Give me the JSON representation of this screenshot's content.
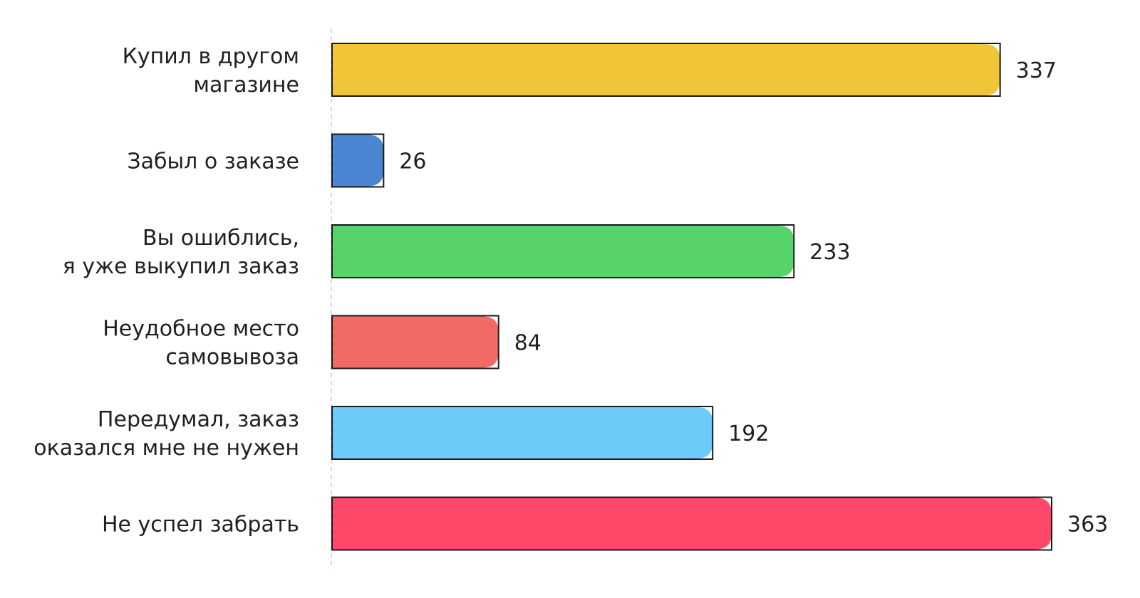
{
  "chart_data": {
    "type": "bar",
    "orientation": "horizontal",
    "title": "",
    "xlabel": "",
    "ylabel": "",
    "categories": [
      [
        "Купил в другом",
        "магазине"
      ],
      [
        "Забыл о заказе"
      ],
      [
        "Вы ошиблись,",
        "я уже выкупил заказ"
      ],
      [
        "Неудобное место",
        "самовывоза"
      ],
      [
        "Передумал, заказ",
        "оказался мне не нужен"
      ],
      [
        "Не успел забрать"
      ]
    ],
    "values": [
      337,
      26,
      233,
      84,
      192,
      363
    ],
    "value_labels": [
      "337",
      "26",
      "233",
      "84",
      "192",
      "363"
    ],
    "colors": [
      "#F0C537",
      "#4A86D1",
      "#56D36A",
      "#F26A64",
      "#6CCBF9",
      "#FF4869"
    ],
    "xlim": [
      0,
      363
    ],
    "grid": false,
    "legend": "none"
  }
}
